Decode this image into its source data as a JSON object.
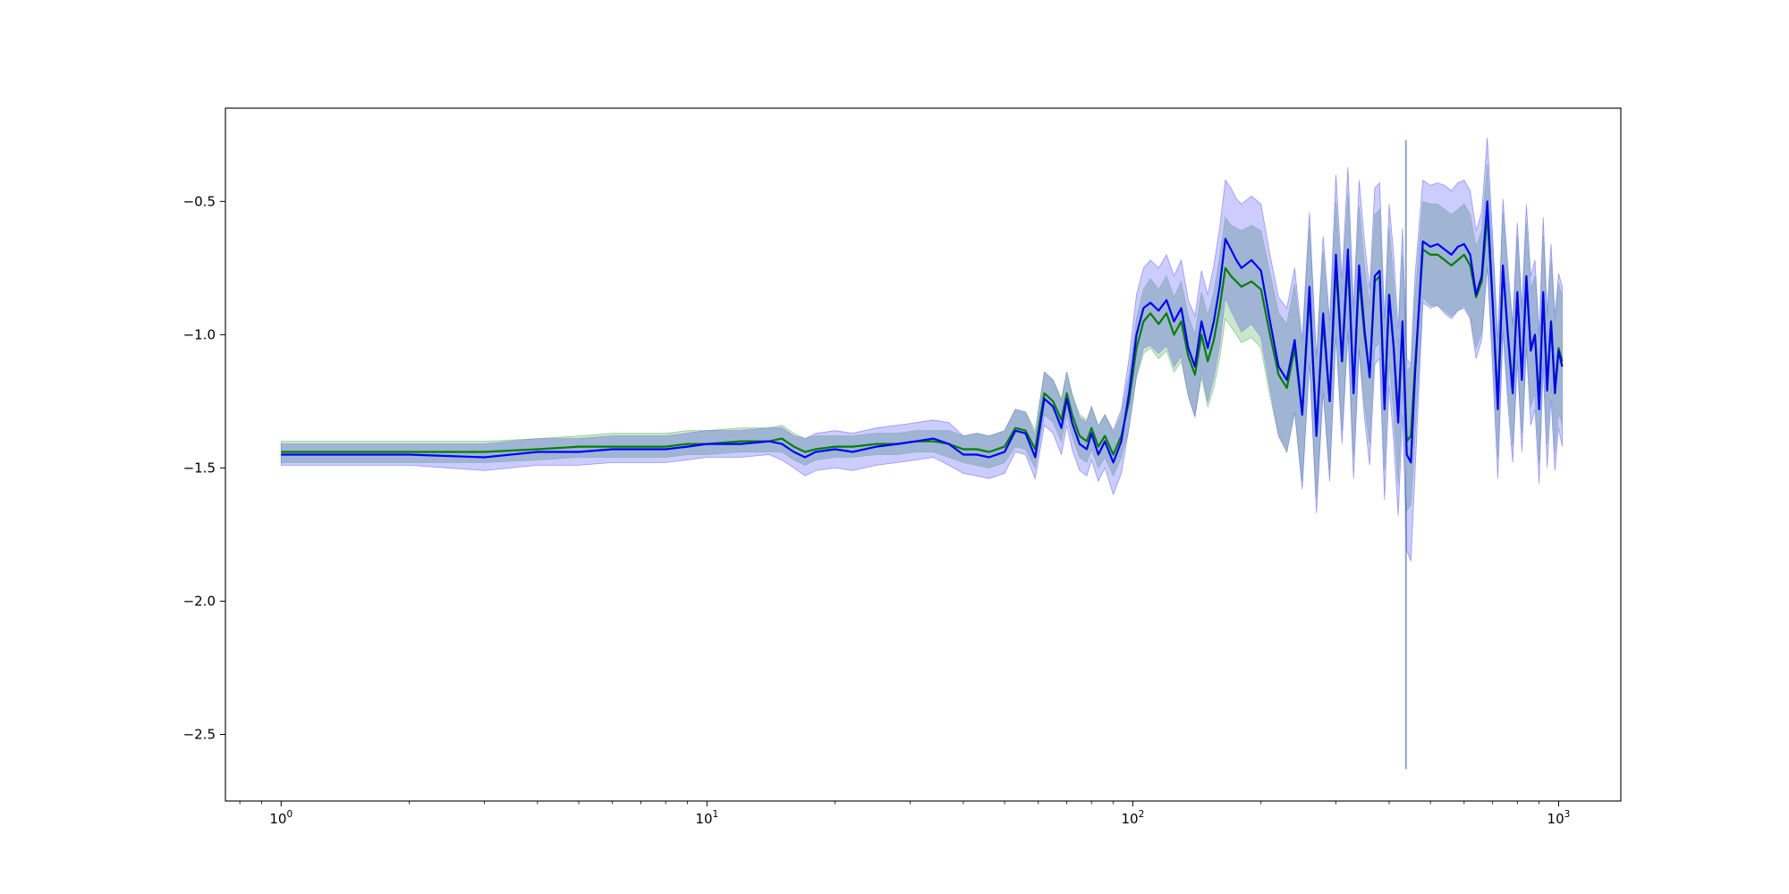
{
  "chart_data": {
    "type": "line",
    "title": "",
    "xlabel": "",
    "ylabel": "",
    "xscale": "log",
    "xlim": [
      0.74,
      1400
    ],
    "ylim": [
      -2.75,
      -0.15
    ],
    "grid": false,
    "legend": "none",
    "x_tick_labels": [
      {
        "base": "10",
        "exp": "0",
        "value": 1
      },
      {
        "base": "10",
        "exp": "1",
        "value": 10
      },
      {
        "base": "10",
        "exp": "2",
        "value": 100
      },
      {
        "base": "10",
        "exp": "3",
        "value": 1000
      }
    ],
    "y_ticks": [
      -2.5,
      -2.0,
      -1.5,
      -1.0,
      -0.5
    ],
    "y_tick_labels": [
      "−2.5",
      "−2.0",
      "−1.5",
      "−1.0",
      "−0.5"
    ],
    "colors": {
      "green_line": "#008000",
      "green_band": "#2ca02c",
      "blue_line": "#0000ff",
      "blue_band": "#3333ff",
      "overlap_band": "#a0b4d2"
    },
    "series": [
      {
        "color": "green",
        "x": [
          1,
          2,
          3,
          4,
          5,
          6,
          7,
          8,
          9,
          10,
          12,
          14,
          15,
          16,
          17,
          18,
          20,
          22,
          25,
          28,
          31,
          34,
          37,
          40,
          43,
          46,
          50,
          53,
          56,
          59,
          62,
          65,
          68,
          70,
          72,
          75,
          78,
          80,
          83,
          86,
          90,
          94,
          98,
          102,
          106,
          110,
          115,
          120,
          125,
          130,
          135,
          140,
          145,
          150,
          155,
          160,
          165,
          170,
          175,
          180,
          190,
          200,
          210,
          220,
          230,
          240,
          250,
          260,
          270,
          280,
          290,
          300,
          310,
          320,
          330,
          340,
          350,
          360,
          370,
          380,
          390,
          400,
          410,
          420,
          430,
          440,
          450,
          460,
          480,
          500,
          520,
          540,
          560,
          580,
          600,
          620,
          640,
          660,
          680,
          700,
          720,
          740,
          760,
          780,
          800,
          820,
          840,
          860,
          880,
          900,
          920,
          940,
          960,
          980,
          1000,
          1020
        ],
        "y": [
          -1.44,
          -1.44,
          -1.44,
          -1.43,
          -1.42,
          -1.42,
          -1.42,
          -1.42,
          -1.41,
          -1.41,
          -1.4,
          -1.4,
          -1.39,
          -1.42,
          -1.44,
          -1.43,
          -1.42,
          -1.42,
          -1.41,
          -1.41,
          -1.4,
          -1.4,
          -1.41,
          -1.43,
          -1.43,
          -1.44,
          -1.42,
          -1.35,
          -1.36,
          -1.43,
          -1.22,
          -1.25,
          -1.32,
          -1.22,
          -1.3,
          -1.38,
          -1.4,
          -1.35,
          -1.42,
          -1.38,
          -1.45,
          -1.38,
          -1.25,
          -1.05,
          -0.95,
          -0.92,
          -0.96,
          -0.92,
          -1.0,
          -0.95,
          -1.08,
          -1.15,
          -1.0,
          -1.1,
          -1.02,
          -0.9,
          -0.75,
          -0.78,
          -0.8,
          -0.82,
          -0.8,
          -0.83,
          -1.0,
          -1.15,
          -1.2,
          -1.05,
          -1.3,
          -0.85,
          -1.35,
          -0.95,
          -1.25,
          -0.75,
          -1.1,
          -0.72,
          -1.2,
          -0.78,
          -1.0,
          -1.15,
          -0.8,
          -0.78,
          -1.25,
          -0.85,
          -1.05,
          -1.3,
          -0.95,
          -1.4,
          -1.38,
          -1.12,
          -0.68,
          -0.7,
          -0.7,
          -0.72,
          -0.74,
          -0.72,
          -0.7,
          -0.74,
          -0.86,
          -0.8,
          -0.55,
          -0.88,
          -1.25,
          -0.75,
          -1.0,
          -1.2,
          -0.85,
          -1.15,
          -0.8,
          -1.05,
          -1.0,
          -1.25,
          -0.85,
          -1.18,
          -0.95,
          -1.2,
          -1.05,
          -1.1
        ],
        "band_lower": [
          -1.48,
          -1.48,
          -1.48,
          -1.47,
          -1.46,
          -1.46,
          -1.46,
          -1.46,
          -1.45,
          -1.45,
          -1.44,
          -1.44,
          -1.44,
          -1.47,
          -1.49,
          -1.47,
          -1.46,
          -1.46,
          -1.45,
          -1.45,
          -1.44,
          -1.44,
          -1.46,
          -1.48,
          -1.49,
          -1.5,
          -1.48,
          -1.42,
          -1.43,
          -1.5,
          -1.3,
          -1.33,
          -1.4,
          -1.3,
          -1.38,
          -1.46,
          -1.48,
          -1.43,
          -1.5,
          -1.46,
          -1.53,
          -1.46,
          -1.35,
          -1.16,
          -1.07,
          -1.05,
          -1.09,
          -1.06,
          -1.14,
          -1.1,
          -1.23,
          -1.3,
          -1.16,
          -1.27,
          -1.2,
          -1.09,
          -0.94,
          -0.97,
          -1.0,
          -1.03,
          -1.01,
          -1.05,
          -1.23,
          -1.38,
          -1.44,
          -1.29,
          -1.55,
          -1.1,
          -1.61,
          -1.21,
          -1.51,
          -1.0,
          -1.36,
          -0.97,
          -1.46,
          -1.04,
          -1.26,
          -1.41,
          -1.05,
          -1.03,
          -1.51,
          -1.1,
          -1.3,
          -1.56,
          -1.2,
          -1.66,
          -1.64,
          -1.38,
          -0.86,
          -0.89,
          -0.89,
          -0.91,
          -0.93,
          -0.91,
          -0.89,
          -0.93,
          -1.05,
          -0.99,
          -0.74,
          -1.07,
          -1.46,
          -0.96,
          -1.21,
          -1.42,
          -1.07,
          -1.37,
          -1.02,
          -1.27,
          -1.22,
          -1.48,
          -1.07,
          -1.41,
          -1.18,
          -1.44,
          -1.29,
          -1.34
        ],
        "band_upper": [
          -1.4,
          -1.4,
          -1.4,
          -1.39,
          -1.38,
          -1.37,
          -1.37,
          -1.37,
          -1.36,
          -1.36,
          -1.35,
          -1.35,
          -1.34,
          -1.37,
          -1.39,
          -1.38,
          -1.38,
          -1.38,
          -1.37,
          -1.37,
          -1.36,
          -1.36,
          -1.36,
          -1.38,
          -1.37,
          -1.38,
          -1.36,
          -1.28,
          -1.29,
          -1.36,
          -1.14,
          -1.17,
          -1.24,
          -1.14,
          -1.22,
          -1.3,
          -1.32,
          -1.27,
          -1.34,
          -1.3,
          -1.37,
          -1.3,
          -1.15,
          -0.94,
          -0.83,
          -0.79,
          -0.83,
          -0.78,
          -0.86,
          -0.8,
          -0.93,
          -1.0,
          -0.84,
          -0.93,
          -0.84,
          -0.71,
          -0.56,
          -0.59,
          -0.6,
          -0.61,
          -0.59,
          -0.61,
          -0.77,
          -0.92,
          -0.96,
          -0.81,
          -1.05,
          -0.6,
          -1.09,
          -0.69,
          -0.99,
          -0.5,
          -0.84,
          -0.47,
          -0.94,
          -0.52,
          -0.74,
          -0.89,
          -0.55,
          -0.53,
          -0.99,
          -0.6,
          -0.8,
          -1.04,
          -0.7,
          -1.14,
          -1.12,
          -0.86,
          -0.5,
          -0.51,
          -0.51,
          -0.53,
          -0.55,
          -0.53,
          -0.51,
          -0.55,
          -0.67,
          -0.61,
          -0.36,
          -0.69,
          -1.04,
          -0.54,
          -0.79,
          -0.98,
          -0.63,
          -0.93,
          -0.58,
          -0.83,
          -0.78,
          -1.02,
          -0.63,
          -0.95,
          -0.72,
          -0.96,
          -0.81,
          -0.86
        ]
      },
      {
        "color": "blue",
        "x": [
          1,
          2,
          3,
          4,
          5,
          6,
          7,
          8,
          9,
          10,
          12,
          14,
          15,
          16,
          17,
          18,
          20,
          22,
          25,
          28,
          31,
          34,
          37,
          40,
          43,
          46,
          50,
          53,
          56,
          59,
          62,
          65,
          68,
          70,
          72,
          75,
          78,
          80,
          83,
          86,
          90,
          94,
          98,
          102,
          106,
          110,
          115,
          120,
          125,
          130,
          135,
          140,
          145,
          150,
          155,
          160,
          165,
          170,
          175,
          180,
          190,
          200,
          210,
          220,
          230,
          240,
          250,
          260,
          270,
          280,
          290,
          300,
          310,
          320,
          330,
          340,
          350,
          360,
          370,
          380,
          390,
          400,
          410,
          420,
          430,
          440,
          450,
          460,
          480,
          500,
          520,
          540,
          560,
          580,
          600,
          620,
          640,
          660,
          680,
          700,
          720,
          740,
          760,
          780,
          800,
          820,
          840,
          860,
          880,
          900,
          920,
          940,
          960,
          980,
          1000,
          1020
        ],
        "y": [
          -1.45,
          -1.45,
          -1.46,
          -1.44,
          -1.44,
          -1.43,
          -1.43,
          -1.43,
          -1.42,
          -1.41,
          -1.41,
          -1.4,
          -1.41,
          -1.44,
          -1.46,
          -1.44,
          -1.43,
          -1.44,
          -1.42,
          -1.41,
          -1.4,
          -1.39,
          -1.41,
          -1.45,
          -1.45,
          -1.46,
          -1.44,
          -1.36,
          -1.37,
          -1.46,
          -1.24,
          -1.27,
          -1.35,
          -1.24,
          -1.33,
          -1.41,
          -1.43,
          -1.37,
          -1.45,
          -1.4,
          -1.48,
          -1.4,
          -1.22,
          -1.0,
          -0.9,
          -0.88,
          -0.91,
          -0.87,
          -0.95,
          -0.9,
          -1.05,
          -1.12,
          -0.95,
          -1.05,
          -0.95,
          -0.82,
          -0.64,
          -0.68,
          -0.72,
          -0.75,
          -0.72,
          -0.76,
          -0.95,
          -1.12,
          -1.17,
          -1.02,
          -1.3,
          -0.82,
          -1.38,
          -0.92,
          -1.25,
          -0.7,
          -1.1,
          -0.68,
          -1.22,
          -0.74,
          -0.98,
          -1.16,
          -0.78,
          -0.76,
          -1.28,
          -0.85,
          -1.05,
          -1.33,
          -0.95,
          -1.45,
          -1.48,
          -1.15,
          -0.65,
          -0.67,
          -0.66,
          -0.68,
          -0.7,
          -0.67,
          -0.66,
          -0.7,
          -0.85,
          -0.78,
          -0.5,
          -0.88,
          -1.28,
          -0.74,
          -1.0,
          -1.22,
          -0.84,
          -1.17,
          -0.78,
          -1.06,
          -1.0,
          -1.28,
          -0.84,
          -1.21,
          -0.95,
          -1.22,
          -1.06,
          -1.12
        ],
        "band_lower": [
          -1.49,
          -1.49,
          -1.51,
          -1.49,
          -1.49,
          -1.48,
          -1.48,
          -1.48,
          -1.47,
          -1.46,
          -1.46,
          -1.45,
          -1.47,
          -1.5,
          -1.53,
          -1.51,
          -1.5,
          -1.51,
          -1.49,
          -1.48,
          -1.47,
          -1.46,
          -1.49,
          -1.52,
          -1.53,
          -1.54,
          -1.52,
          -1.44,
          -1.45,
          -1.54,
          -1.34,
          -1.37,
          -1.45,
          -1.34,
          -1.43,
          -1.51,
          -1.53,
          -1.47,
          -1.55,
          -1.5,
          -1.6,
          -1.52,
          -1.35,
          -1.15,
          -1.05,
          -1.04,
          -1.07,
          -1.04,
          -1.12,
          -1.08,
          -1.23,
          -1.31,
          -1.14,
          -1.25,
          -1.16,
          -1.04,
          -0.86,
          -0.91,
          -0.95,
          -0.99,
          -0.96,
          -1.01,
          -1.2,
          -1.38,
          -1.44,
          -1.29,
          -1.58,
          -1.1,
          -1.67,
          -1.21,
          -1.55,
          -1.0,
          -1.41,
          -0.99,
          -1.54,
          -1.06,
          -1.31,
          -1.49,
          -1.11,
          -1.09,
          -1.62,
          -1.19,
          -1.4,
          -1.68,
          -1.3,
          -1.81,
          -1.85,
          -1.52,
          -0.88,
          -0.9,
          -0.89,
          -0.92,
          -0.94,
          -0.91,
          -0.9,
          -0.94,
          -1.09,
          -1.02,
          -0.74,
          -1.13,
          -1.54,
          -0.99,
          -1.26,
          -1.48,
          -1.1,
          -1.44,
          -1.05,
          -1.34,
          -1.28,
          -1.56,
          -1.12,
          -1.5,
          -1.24,
          -1.51,
          -1.35,
          -1.42
        ],
        "band_upper": [
          -1.41,
          -1.41,
          -1.41,
          -1.39,
          -1.39,
          -1.38,
          -1.38,
          -1.38,
          -1.37,
          -1.36,
          -1.36,
          -1.35,
          -1.35,
          -1.38,
          -1.39,
          -1.37,
          -1.36,
          -1.37,
          -1.35,
          -1.34,
          -1.33,
          -1.32,
          -1.33,
          -1.38,
          -1.37,
          -1.38,
          -1.36,
          -1.28,
          -1.29,
          -1.38,
          -1.14,
          -1.17,
          -1.25,
          -1.14,
          -1.23,
          -1.31,
          -1.33,
          -1.27,
          -1.35,
          -1.3,
          -1.36,
          -1.28,
          -1.09,
          -0.85,
          -0.75,
          -0.72,
          -0.75,
          -0.7,
          -0.78,
          -0.72,
          -0.87,
          -0.93,
          -0.76,
          -0.85,
          -0.74,
          -0.6,
          -0.42,
          -0.45,
          -0.49,
          -0.51,
          -0.48,
          -0.51,
          -0.7,
          -0.86,
          -0.9,
          -0.75,
          -1.02,
          -0.54,
          -1.09,
          -0.63,
          -0.95,
          -0.4,
          -0.79,
          -0.37,
          -0.9,
          -0.42,
          -0.65,
          -0.83,
          -0.45,
          -0.43,
          -0.94,
          -0.51,
          -0.7,
          -0.98,
          -0.6,
          -1.09,
          -1.11,
          -0.78,
          -0.42,
          -0.44,
          -0.43,
          -0.44,
          -0.46,
          -0.43,
          -0.42,
          -0.46,
          -0.61,
          -0.54,
          -0.26,
          -0.63,
          -1.02,
          -0.49,
          -0.74,
          -0.96,
          -0.58,
          -0.9,
          -0.51,
          -0.78,
          -0.72,
          -1.0,
          -0.56,
          -0.92,
          -0.66,
          -0.93,
          -0.77,
          -0.82
        ]
      }
    ],
    "spikes": [
      {
        "x": 438,
        "y_low": -2.63,
        "y_high": -0.27
      }
    ]
  }
}
